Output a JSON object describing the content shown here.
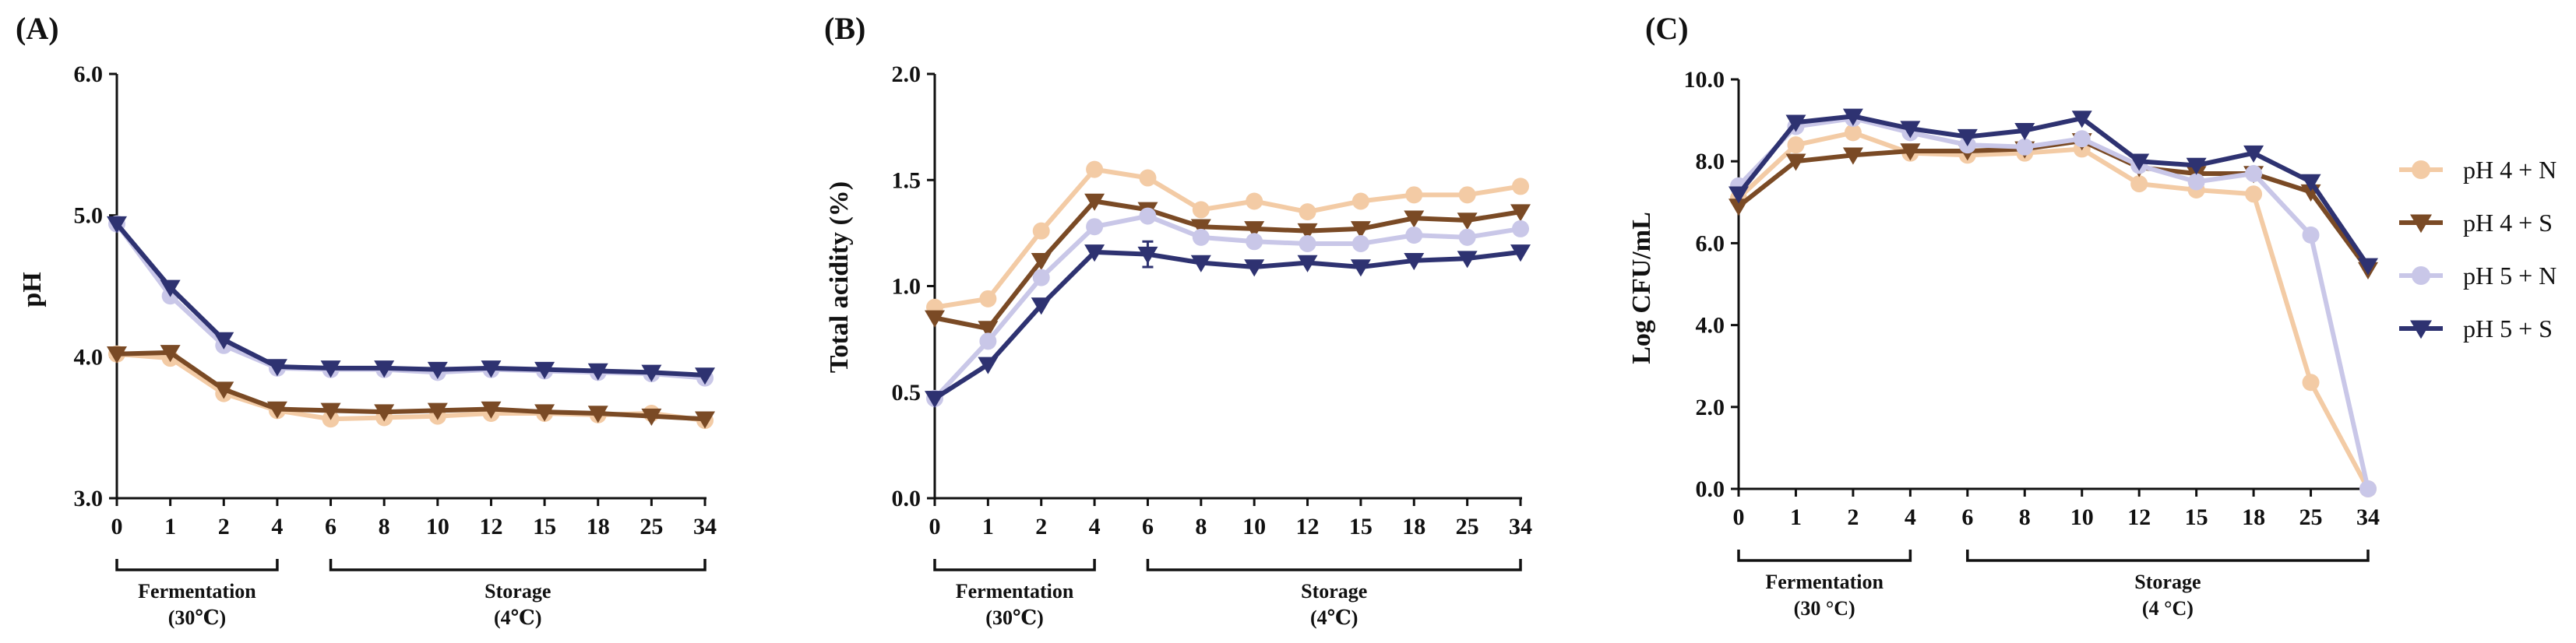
{
  "chart_data": [
    {
      "type": "line",
      "panel_label": "(A)",
      "title": "",
      "xlabel": "",
      "ylabel": "pH",
      "ylim": [
        3.0,
        6.0
      ],
      "yticks": [
        "3.0",
        "4.0",
        "5.0",
        "6.0"
      ],
      "x": [
        "0",
        "1",
        "2",
        "4",
        "6",
        "8",
        "10",
        "12",
        "15",
        "18",
        "25",
        "34"
      ],
      "periods": [
        {
          "name": "Fermentation",
          "note": "(30℃)",
          "from": 0,
          "to": 3
        },
        {
          "name": "Storage",
          "note": "(4℃)",
          "from": 4,
          "to": 11
        }
      ],
      "series": [
        {
          "name": "pH 4 + N",
          "values": [
            4.02,
            3.99,
            3.74,
            3.62,
            3.56,
            3.57,
            3.58,
            3.6,
            3.6,
            3.59,
            3.6,
            3.55
          ]
        },
        {
          "name": "pH 4 + S",
          "values": [
            4.02,
            4.03,
            3.77,
            3.63,
            3.62,
            3.61,
            3.62,
            3.63,
            3.61,
            3.6,
            3.58,
            3.56
          ]
        },
        {
          "name": "pH 5 + N",
          "values": [
            4.94,
            4.43,
            4.08,
            3.92,
            3.91,
            3.91,
            3.89,
            3.91,
            3.9,
            3.89,
            3.88,
            3.85
          ]
        },
        {
          "name": "pH 5 + S",
          "values": [
            4.94,
            4.49,
            4.12,
            3.93,
            3.92,
            3.92,
            3.91,
            3.92,
            3.91,
            3.9,
            3.89,
            3.87
          ]
        }
      ]
    },
    {
      "type": "line",
      "panel_label": "(B)",
      "title": "",
      "xlabel": "",
      "ylabel": "Total acidity (%)",
      "ylim": [
        0.0,
        2.0
      ],
      "yticks": [
        "0.0",
        "0.5",
        "1.0",
        "1.5",
        "2.0"
      ],
      "x": [
        "0",
        "1",
        "2",
        "4",
        "6",
        "8",
        "10",
        "12",
        "15",
        "18",
        "25",
        "34"
      ],
      "periods": [
        {
          "name": "Fermentation",
          "note": "(30℃)",
          "from": 0,
          "to": 3
        },
        {
          "name": "Storage",
          "note": "(4℃)",
          "from": 4,
          "to": 11
        }
      ],
      "series": [
        {
          "name": "pH 4 + N",
          "values": [
            0.9,
            0.94,
            1.26,
            1.55,
            1.51,
            1.36,
            1.4,
            1.35,
            1.4,
            1.43,
            1.43,
            1.47
          ]
        },
        {
          "name": "pH 4 + S",
          "values": [
            0.85,
            0.8,
            1.12,
            1.4,
            1.36,
            1.28,
            1.27,
            1.26,
            1.27,
            1.32,
            1.31,
            1.35
          ]
        },
        {
          "name": "pH 5 + N",
          "values": [
            0.47,
            0.74,
            1.04,
            1.28,
            1.33,
            1.23,
            1.21,
            1.2,
            1.2,
            1.24,
            1.23,
            1.27
          ]
        },
        {
          "name": "pH 5 + S",
          "values": [
            0.47,
            0.63,
            0.91,
            1.16,
            1.15,
            1.11,
            1.09,
            1.11,
            1.09,
            1.12,
            1.13,
            1.16
          ]
        }
      ]
    },
    {
      "type": "line",
      "panel_label": "(C)",
      "title": "",
      "xlabel": "",
      "ylabel": "Log CFU/mL",
      "ylim": [
        0.0,
        10.0
      ],
      "yticks": [
        "0.0",
        "2.0",
        "4.0",
        "6.0",
        "8.0",
        "10.0"
      ],
      "x": [
        "0",
        "1",
        "2",
        "4",
        "6",
        "8",
        "10",
        "12",
        "15",
        "18",
        "25",
        "34"
      ],
      "periods": [
        {
          "name": "Fermentation",
          "note": "(30 °C)",
          "from": 0,
          "to": 3
        },
        {
          "name": "Storage",
          "note": "(4 °C)",
          "from": 4,
          "to": 11
        }
      ],
      "series": [
        {
          "name": "pH 4 + N",
          "values": [
            7.1,
            8.4,
            8.7,
            8.2,
            8.15,
            8.2,
            8.3,
            7.45,
            7.3,
            7.2,
            2.6,
            0.0
          ]
        },
        {
          "name": "pH 4 + S",
          "values": [
            6.9,
            8.0,
            8.15,
            8.25,
            8.25,
            8.3,
            8.5,
            7.85,
            7.7,
            7.7,
            7.25,
            5.35
          ]
        },
        {
          "name": "pH 5 + N",
          "values": [
            7.4,
            8.85,
            9.05,
            8.7,
            8.4,
            8.35,
            8.55,
            7.9,
            7.5,
            7.7,
            6.2,
            0.0
          ]
        },
        {
          "name": "pH 5 + S",
          "values": [
            7.2,
            8.95,
            9.1,
            8.8,
            8.6,
            8.75,
            9.05,
            8.0,
            7.9,
            8.2,
            7.5,
            5.45
          ]
        }
      ]
    }
  ],
  "legend": {
    "items": [
      {
        "name": "pH 4 + N",
        "color": "#F3CBA5",
        "marker": "circle"
      },
      {
        "name": "pH 4 + S",
        "color": "#7A4A25",
        "marker": "triangle-down"
      },
      {
        "name": "pH 5 + N",
        "color": "#C9C7E8",
        "marker": "circle"
      },
      {
        "name": "pH 5 + S",
        "color": "#2E3271",
        "marker": "triangle-down"
      }
    ]
  }
}
